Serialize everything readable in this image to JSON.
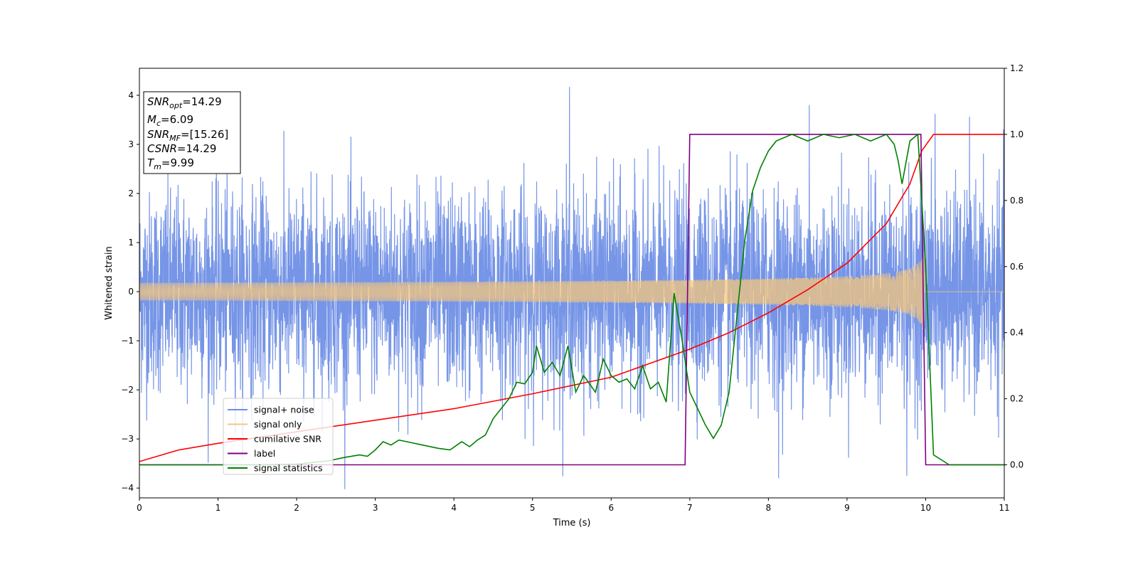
{
  "chart_data": {
    "type": "line",
    "xlabel": "Time (s)",
    "ylabel_left": "Whitened strain",
    "xlim": [
      0,
      11
    ],
    "ylim_left": [
      -4.2,
      4.55
    ],
    "ylim_right": [
      -0.1,
      1.2
    ],
    "x_ticks": [
      "0",
      "1",
      "2",
      "3",
      "4",
      "5",
      "6",
      "7",
      "8",
      "9",
      "10",
      "11"
    ],
    "y_ticks_left": [
      "4",
      "3",
      "2",
      "1",
      "0",
      "−1",
      "−2",
      "−3",
      "−4"
    ],
    "y_ticks_right": [
      "1.2",
      "1.0",
      "0.8",
      "0.6",
      "0.4",
      "0.2",
      "0.0"
    ],
    "legend": {
      "placement": "lower-left",
      "entries": [
        {
          "label": "signal+ noise",
          "color": "#6f8fe6"
        },
        {
          "label": "signal only",
          "color": "#f5c77e"
        },
        {
          "label": "cumilative SNR",
          "color": "#ff0000"
        },
        {
          "label": "label",
          "color": "#800080"
        },
        {
          "label": "signal statistics",
          "color": "#008000"
        }
      ]
    },
    "annotation_box": [
      {
        "name": "SNR",
        "sub": "opt",
        "value": "=14.29"
      },
      {
        "name": "M",
        "sub": "c",
        "value": "=6.09"
      },
      {
        "name": "SNR",
        "sub": "MF",
        "value": "=[15.26]"
      },
      {
        "name": "CSNR",
        "sub": "",
        "value": "=14.29"
      },
      {
        "name": "T",
        "sub": "m",
        "value": "=9.99"
      }
    ],
    "series": [
      {
        "name": "signal+ noise",
        "axis": "left",
        "color": "#6f8fe6",
        "kind": "noise",
        "description_values": {
          "x_start": 0,
          "x_end": 11,
          "typical_amplitude": 1.0,
          "peaks": [
            [
              5.47,
              4.17
            ],
            [
              8.52,
              3.8
            ],
            [
              10.12,
              3.62
            ],
            [
              8.13,
              -3.8
            ],
            [
              9.76,
              -3.75
            ]
          ]
        }
      },
      {
        "name": "signal only",
        "axis": "left",
        "color": "#f5c77e",
        "kind": "chirp",
        "description_values": {
          "x_start": 0,
          "merger_time": 9.99,
          "amplitude_start": 0.06,
          "amplitude_merger": 0.85
        }
      },
      {
        "name": "cumilative SNR",
        "axis": "right",
        "color": "#ff0000",
        "points": [
          [
            0,
            0.01
          ],
          [
            0.5,
            0.045
          ],
          [
            1,
            0.065
          ],
          [
            2,
            0.1
          ],
          [
            3,
            0.135
          ],
          [
            4,
            0.17
          ],
          [
            5,
            0.215
          ],
          [
            6,
            0.265
          ],
          [
            7,
            0.35
          ],
          [
            7.5,
            0.4
          ],
          [
            8,
            0.46
          ],
          [
            8.5,
            0.53
          ],
          [
            9,
            0.61
          ],
          [
            9.5,
            0.73
          ],
          [
            9.8,
            0.85
          ],
          [
            9.95,
            0.95
          ],
          [
            10.1,
            1.0
          ],
          [
            11,
            1.0
          ]
        ]
      },
      {
        "name": "label",
        "axis": "right",
        "color": "#800080",
        "points": [
          [
            0,
            0
          ],
          [
            6.94,
            0
          ],
          [
            7.0,
            1.0
          ],
          [
            9.94,
            1.0
          ],
          [
            10.0,
            0
          ],
          [
            11,
            0
          ]
        ]
      },
      {
        "name": "signal statistics",
        "axis": "right",
        "color": "#008000",
        "points": [
          [
            0,
            0
          ],
          [
            1.5,
            0
          ],
          [
            2.0,
            0.002
          ],
          [
            2.4,
            0.012
          ],
          [
            2.6,
            0.022
          ],
          [
            2.8,
            0.03
          ],
          [
            2.9,
            0.026
          ],
          [
            3.0,
            0.045
          ],
          [
            3.1,
            0.07
          ],
          [
            3.2,
            0.06
          ],
          [
            3.3,
            0.075
          ],
          [
            3.4,
            0.07
          ],
          [
            3.6,
            0.06
          ],
          [
            3.8,
            0.05
          ],
          [
            3.95,
            0.045
          ],
          [
            4.1,
            0.07
          ],
          [
            4.2,
            0.055
          ],
          [
            4.3,
            0.075
          ],
          [
            4.4,
            0.09
          ],
          [
            4.5,
            0.14
          ],
          [
            4.6,
            0.17
          ],
          [
            4.7,
            0.2
          ],
          [
            4.8,
            0.25
          ],
          [
            4.9,
            0.245
          ],
          [
            5.0,
            0.28
          ],
          [
            5.05,
            0.36
          ],
          [
            5.15,
            0.28
          ],
          [
            5.25,
            0.31
          ],
          [
            5.35,
            0.27
          ],
          [
            5.45,
            0.36
          ],
          [
            5.55,
            0.22
          ],
          [
            5.65,
            0.27
          ],
          [
            5.8,
            0.22
          ],
          [
            5.9,
            0.32
          ],
          [
            6.0,
            0.27
          ],
          [
            6.1,
            0.25
          ],
          [
            6.2,
            0.26
          ],
          [
            6.3,
            0.23
          ],
          [
            6.4,
            0.3
          ],
          [
            6.5,
            0.23
          ],
          [
            6.6,
            0.25
          ],
          [
            6.7,
            0.19
          ],
          [
            6.8,
            0.52
          ],
          [
            6.9,
            0.38
          ],
          [
            7.0,
            0.22
          ],
          [
            7.1,
            0.17
          ],
          [
            7.2,
            0.12
          ],
          [
            7.3,
            0.08
          ],
          [
            7.4,
            0.12
          ],
          [
            7.5,
            0.22
          ],
          [
            7.6,
            0.45
          ],
          [
            7.7,
            0.68
          ],
          [
            7.8,
            0.83
          ],
          [
            7.9,
            0.9
          ],
          [
            8.0,
            0.95
          ],
          [
            8.1,
            0.98
          ],
          [
            8.3,
            1.0
          ],
          [
            8.5,
            0.98
          ],
          [
            8.7,
            1.0
          ],
          [
            8.9,
            0.99
          ],
          [
            9.1,
            1.0
          ],
          [
            9.3,
            0.98
          ],
          [
            9.5,
            1.0
          ],
          [
            9.6,
            0.97
          ],
          [
            9.65,
            0.92
          ],
          [
            9.7,
            0.85
          ],
          [
            9.8,
            0.98
          ],
          [
            9.9,
            1.0
          ],
          [
            10.0,
            0.6
          ],
          [
            10.1,
            0.03
          ],
          [
            10.3,
            0
          ],
          [
            11,
            0
          ]
        ]
      }
    ]
  }
}
